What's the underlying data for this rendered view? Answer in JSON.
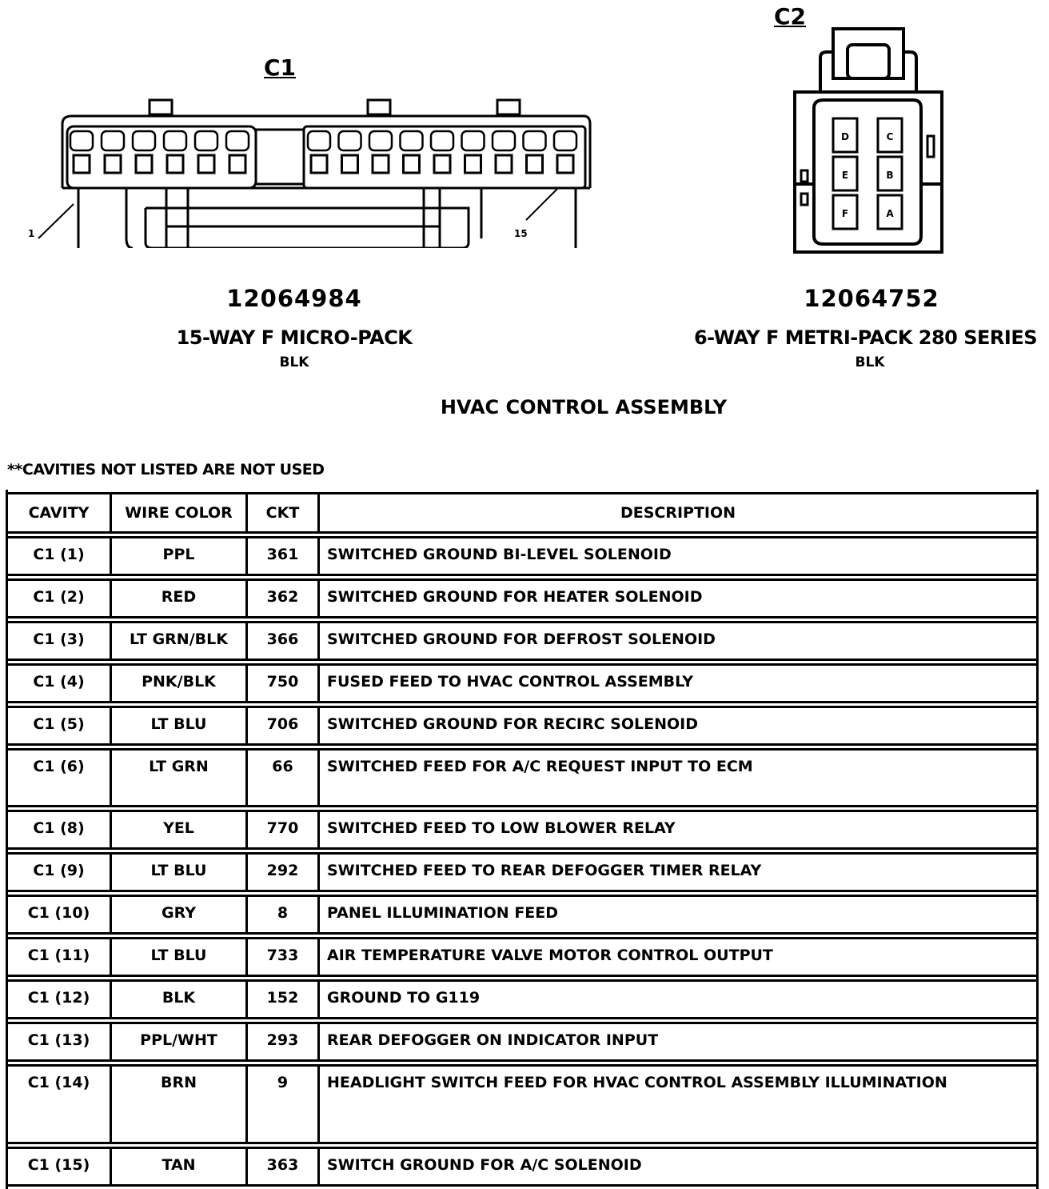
{
  "connectors": [
    {
      "id": "C1",
      "part_number": "12064984",
      "description": "15-WAY F MICRO-PACK",
      "color": "BLK",
      "pin_labels": [
        "1",
        "15"
      ]
    },
    {
      "id": "C2",
      "part_number": "12064752",
      "description": "6-WAY F METRI-PACK 280 SERIES",
      "color": "BLK",
      "cavity_labels": [
        "D",
        "C",
        "E",
        "B",
        "F",
        "A"
      ]
    }
  ],
  "title": "HVAC CONTROL ASSEMBLY",
  "note": "**CAVITIES NOT LISTED ARE NOT USED",
  "table": {
    "headers": [
      "CAVITY",
      "WIRE COLOR",
      "CKT",
      "DESCRIPTION"
    ],
    "rows": [
      [
        "C1 (1)",
        "PPL",
        "361",
        "SWITCHED GROUND BI-LEVEL SOLENOID"
      ],
      [
        "C1 (2)",
        "RED",
        "362",
        "SWITCHED GROUND FOR HEATER SOLENOID"
      ],
      [
        "C1 (3)",
        "LT GRN/BLK",
        "366",
        "SWITCHED GROUND FOR DEFROST SOLENOID"
      ],
      [
        "C1 (4)",
        "PNK/BLK",
        "750",
        "FUSED FEED TO HVAC CONTROL ASSEMBLY"
      ],
      [
        "C1 (5)",
        "LT BLU",
        "706",
        "SWITCHED GROUND FOR RECIRC SOLENOID"
      ],
      [
        "C1 (6)",
        "LT GRN",
        "66",
        "SWITCHED FEED FOR A/C REQUEST INPUT TO ECM"
      ],
      [
        "C1 (8)",
        "YEL",
        "770",
        "SWITCHED FEED TO LOW BLOWER RELAY"
      ],
      [
        "C1 (9)",
        "LT BLU",
        "292",
        "SWITCHED FEED TO REAR DEFOGGER TIMER RELAY"
      ],
      [
        "C1 (10)",
        "GRY",
        "8",
        "PANEL ILLUMINATION FEED"
      ],
      [
        "C1 (11)",
        "LT BLU",
        "733",
        "AIR TEMPERATURE VALVE MOTOR CONTROL OUTPUT"
      ],
      [
        "C1 (12)",
        "BLK",
        "152",
        "GROUND TO G119"
      ],
      [
        "C1 (13)",
        "PPL/WHT",
        "293",
        "REAR DEFOGGER ON INDICATOR INPUT"
      ],
      [
        "C1 (14)",
        "BRN",
        "9",
        "HEADLIGHT SWITCH FEED FOR HVAC CONTROL ASSEMBLY ILLUMINATION"
      ],
      [
        "C1 (15)",
        "TAN",
        "363",
        "SWITCH GROUND FOR A/C SOLENOID"
      ]
    ]
  }
}
